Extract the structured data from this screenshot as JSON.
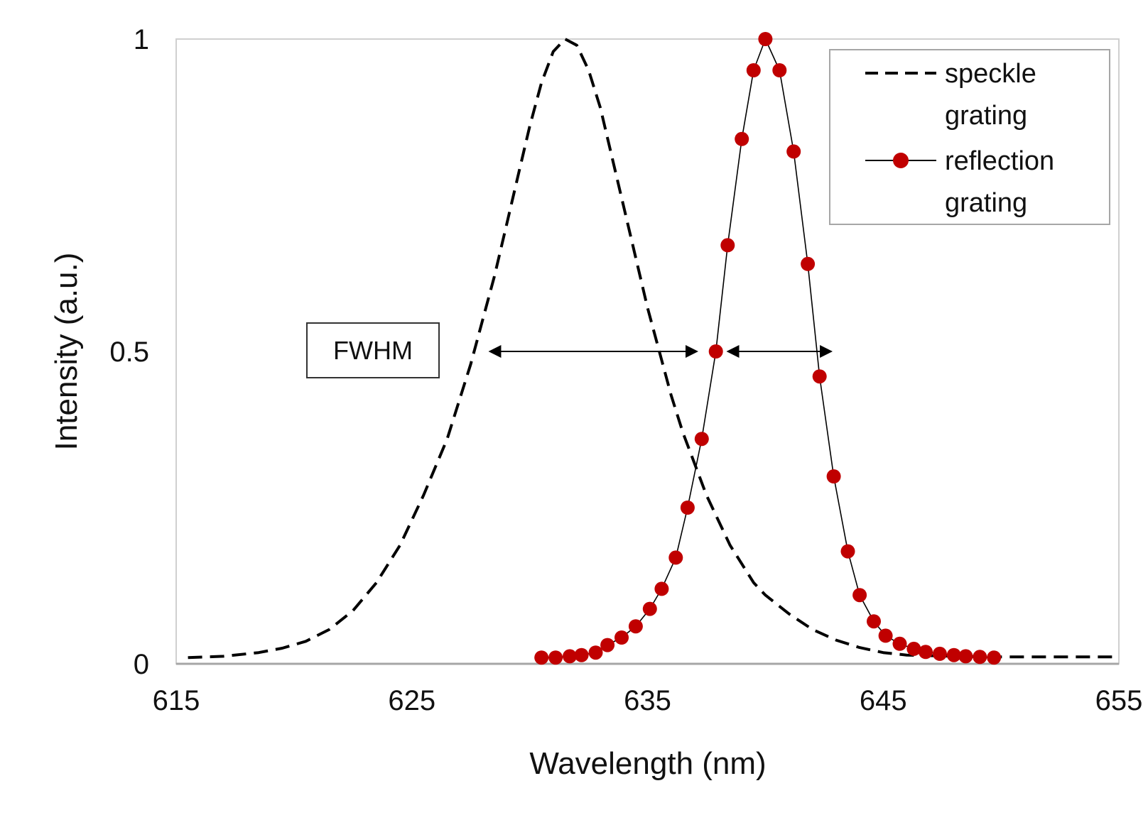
{
  "chart_data": {
    "type": "line",
    "title": "",
    "xlabel": "Wavelength (nm)",
    "ylabel": "Intensity (a.u.)",
    "xlim": [
      615,
      655
    ],
    "ylim": [
      0,
      1
    ],
    "xticks": [
      615,
      625,
      635,
      645,
      655
    ],
    "yticks": [
      {
        "value": 0,
        "label": "0"
      },
      {
        "value": 0.5,
        "label": "0.5"
      },
      {
        "value": 1,
        "label": "1"
      }
    ],
    "grid": false,
    "legend_position": "top-right",
    "series": [
      {
        "name": "speckle grating",
        "legend_lines": [
          "speckle",
          "grating"
        ],
        "style": "dashed",
        "color": "#000000",
        "x": [
          615.5,
          617,
          618.5,
          619.5,
          620.5,
          621.5,
          622.5,
          623.5,
          624.5,
          625.5,
          626.5,
          627,
          627.5,
          628,
          628.5,
          629,
          629.5,
          630,
          630.5,
          631,
          631.5,
          632,
          632.5,
          633,
          633.5,
          634,
          634.5,
          635,
          635.5,
          636,
          636.5,
          637,
          637.5,
          638,
          638.5,
          639,
          639.5,
          640,
          641,
          642,
          643,
          644,
          645,
          646,
          648,
          650,
          652,
          655
        ],
        "y": [
          0.01,
          0.012,
          0.018,
          0.025,
          0.036,
          0.055,
          0.085,
          0.13,
          0.19,
          0.27,
          0.36,
          0.42,
          0.48,
          0.55,
          0.62,
          0.7,
          0.78,
          0.86,
          0.93,
          0.98,
          1.0,
          0.99,
          0.95,
          0.89,
          0.81,
          0.73,
          0.65,
          0.57,
          0.5,
          0.43,
          0.37,
          0.32,
          0.27,
          0.23,
          0.19,
          0.16,
          0.13,
          0.11,
          0.08,
          0.055,
          0.038,
          0.026,
          0.018,
          0.014,
          0.012,
          0.011,
          0.011,
          0.011
        ]
      },
      {
        "name": "reflection grating",
        "legend_lines": [
          "reflection",
          "grating"
        ],
        "style": "solid-markers",
        "color": "#c00000",
        "line_color": "#000000",
        "x": [
          630.5,
          631.1,
          631.7,
          632.2,
          632.8,
          633.3,
          633.9,
          634.5,
          635.1,
          635.6,
          636.2,
          636.7,
          637.3,
          637.9,
          638.4,
          639.0,
          639.5,
          640.0,
          640.6,
          641.2,
          641.8,
          642.3,
          642.9,
          643.5,
          644.0,
          644.6,
          645.1,
          645.7,
          646.3,
          646.8,
          647.4,
          648.0,
          648.5,
          649.1,
          649.7
        ],
        "y": [
          0.01,
          0.01,
          0.012,
          0.014,
          0.018,
          0.03,
          0.042,
          0.06,
          0.088,
          0.12,
          0.17,
          0.25,
          0.36,
          0.5,
          0.67,
          0.84,
          0.95,
          1.0,
          0.95,
          0.82,
          0.64,
          0.46,
          0.3,
          0.18,
          0.11,
          0.068,
          0.045,
          0.032,
          0.024,
          0.019,
          0.016,
          0.014,
          0.012,
          0.011,
          0.01
        ]
      }
    ],
    "annotations": [
      {
        "type": "label-box",
        "text": "FWHM"
      },
      {
        "type": "double-arrow",
        "series": "speckle grating",
        "x1": 628.3,
        "x2": 637.1,
        "y": 0.5
      },
      {
        "type": "double-arrow",
        "series": "reflection grating",
        "x1": 638.4,
        "x2": 642.8,
        "y": 0.5
      }
    ]
  }
}
